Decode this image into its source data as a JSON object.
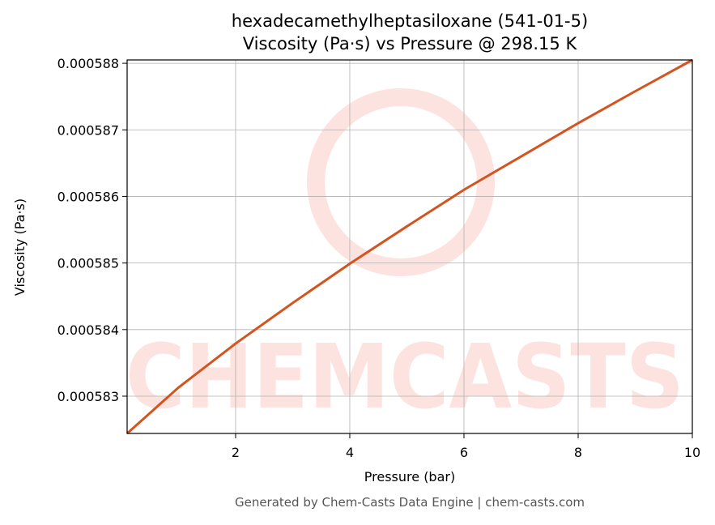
{
  "chart_data": {
    "type": "line",
    "title": "hexadecamethylheptasiloxane (541-01-5)",
    "subtitle": "Viscosity (Pa·s) vs Pressure @ 298.15 K",
    "x_label": "Pressure (bar)",
    "y_label": "Viscosity (Pa·s)",
    "footer": "Generated by Chem-Casts Data Engine | chem-casts.com",
    "watermark": "CHEMCASTS",
    "x": [
      0.1,
      1,
      2,
      3,
      4,
      5,
      6,
      7,
      8,
      9,
      10
    ],
    "series": [
      {
        "name": "Viscosity",
        "color": "#d4541f",
        "values": [
          0.00058244,
          0.00058313,
          0.00058379,
          0.0005844,
          0.00058499,
          0.00058555,
          0.0005861,
          0.0005866,
          0.0005871,
          0.00058758,
          0.00058805
        ]
      }
    ],
    "xlim": [
      0.1,
      10
    ],
    "ylim": [
      0.00058244,
      0.00058805
    ],
    "xticks": [
      2,
      4,
      6,
      8,
      10
    ],
    "yticks": [
      0.000583,
      0.000584,
      0.000585,
      0.000586,
      0.000587,
      0.000588
    ],
    "grid": true
  }
}
